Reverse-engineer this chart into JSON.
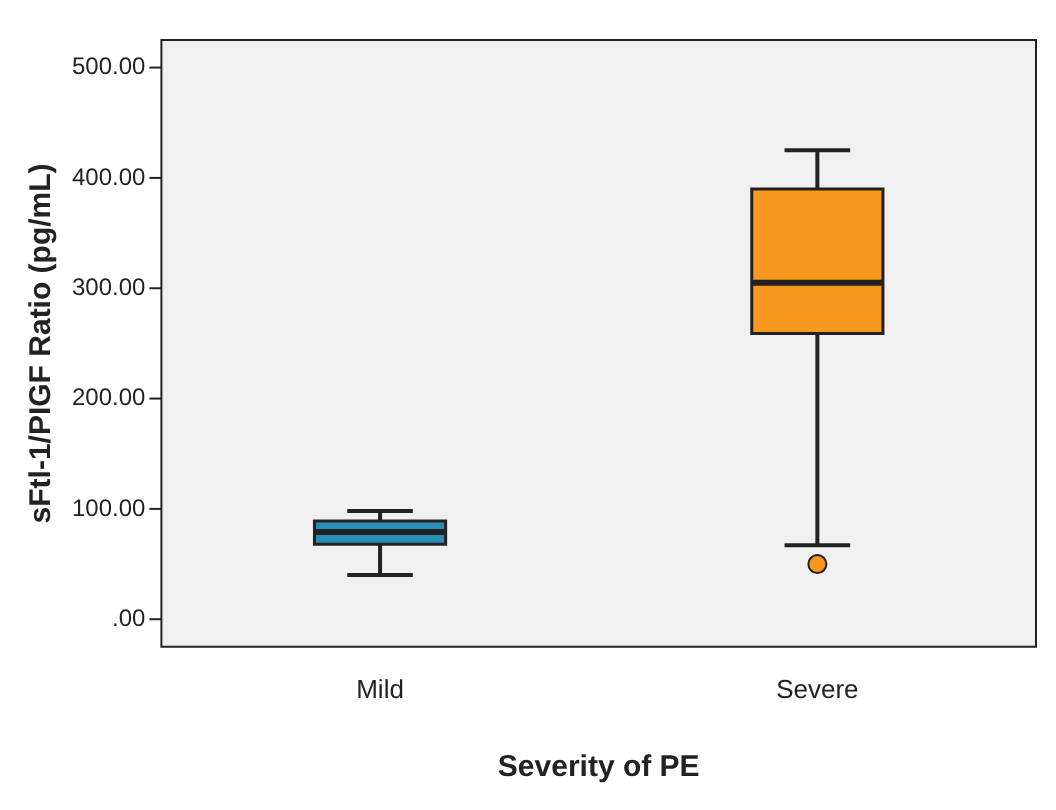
{
  "chart_data": {
    "type": "box",
    "xlabel": "Severity of PE",
    "ylabel": "sFtl-1/PIGF Ratio (pg/mL)",
    "categories": [
      "Mild",
      "Severe"
    ],
    "colors": [
      "#2a8db5",
      "#f7971e"
    ],
    "boxes": [
      {
        "low": 40,
        "q1": 68,
        "median": 79,
        "q3": 89,
        "high": 98
      },
      {
        "low": 67,
        "q1": 259,
        "median": 305,
        "q3": 390,
        "high": 425,
        "outliers": [
          50
        ]
      }
    ],
    "ylim": [
      -25,
      525
    ],
    "yticks": [
      {
        "value": 0,
        "label": ".00"
      },
      {
        "value": 100,
        "label": "100.00"
      },
      {
        "value": 200,
        "label": "200.00"
      },
      {
        "value": 300,
        "label": "300.00"
      },
      {
        "value": 400,
        "label": "400.00"
      },
      {
        "value": 500,
        "label": "500.00"
      }
    ],
    "grid": false,
    "legend": false
  }
}
